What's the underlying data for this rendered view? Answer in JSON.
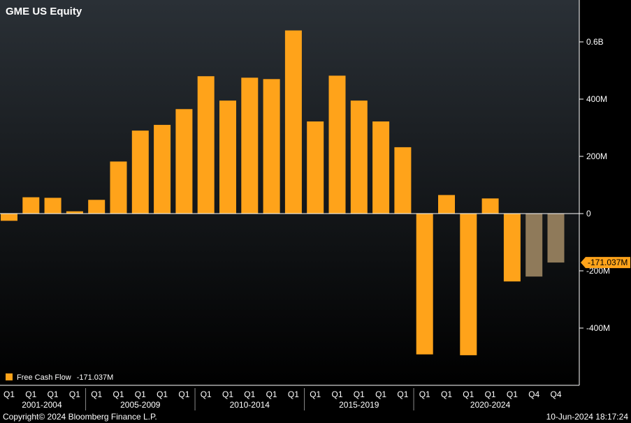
{
  "title": "GME US Equity",
  "legend": {
    "label": "Free Cash Flow",
    "value": "-171.037M"
  },
  "current_value_label": "-171.037M",
  "copyright": "Copyright© 2024 Bloomberg Finance L.P.",
  "timestamp": "10-Jun-2024 18:17:24",
  "colors": {
    "bar": "#ffa31a",
    "bar_estimate": "#8f7a5a",
    "background_top": "#2a3036",
    "background_bottom": "#000000",
    "zero_line": "#ffffff"
  },
  "chart_data": {
    "type": "bar",
    "ylim": [
      -600000000,
      700000000
    ],
    "y_ticks": [
      {
        "value": 600000000,
        "label": "0.6B"
      },
      {
        "value": 400000000,
        "label": "400M"
      },
      {
        "value": 200000000,
        "label": "200M"
      },
      {
        "value": 0,
        "label": "0"
      },
      {
        "value": -200000000,
        "label": "-200M"
      },
      {
        "value": -400000000,
        "label": "-400M"
      }
    ],
    "categories": [
      "Q1",
      "Q1",
      "Q1",
      "Q1",
      "Q1",
      "Q1",
      "Q1",
      "Q1",
      "Q1",
      "Q1",
      "Q1",
      "Q1",
      "Q1",
      "Q1",
      "Q1",
      "Q1",
      "Q1",
      "Q1",
      "Q1",
      "Q1",
      "Q1",
      "Q1",
      "Q1",
      "Q1",
      "Q4",
      "Q4"
    ],
    "values": [
      -25000000,
      57000000,
      55000000,
      8000000,
      48000000,
      182000000,
      290000000,
      310000000,
      365000000,
      480000000,
      395000000,
      475000000,
      470000000,
      640000000,
      322000000,
      482000000,
      395000000,
      322000000,
      232000000,
      -492000000,
      65000000,
      -495000000,
      53000000,
      -237000000,
      -220000000,
      -171037000
    ],
    "estimated": [
      false,
      false,
      false,
      false,
      false,
      false,
      false,
      false,
      false,
      false,
      false,
      false,
      false,
      false,
      false,
      false,
      false,
      false,
      false,
      false,
      false,
      false,
      false,
      false,
      true,
      true
    ],
    "period_groups": [
      {
        "label": "2001-2004",
        "start": 0,
        "end": 3
      },
      {
        "label": "2005-2009",
        "start": 4,
        "end": 8
      },
      {
        "label": "2010-2014",
        "start": 9,
        "end": 13
      },
      {
        "label": "2015-2019",
        "start": 14,
        "end": 18
      },
      {
        "label": "2020-2024",
        "start": 19,
        "end": 25
      }
    ],
    "series": [
      {
        "name": "Free Cash Flow"
      }
    ]
  }
}
